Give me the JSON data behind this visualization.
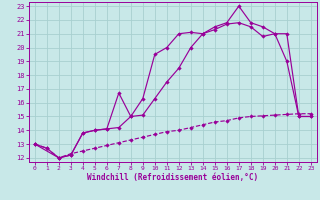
{
  "xlabel": "Windchill (Refroidissement éolien,°C)",
  "bg_color": "#c8e8e8",
  "grid_color": "#a8d0d0",
  "line_color": "#990099",
  "xlim": [
    -0.5,
    23.5
  ],
  "ylim": [
    11.7,
    23.3
  ],
  "xticks": [
    0,
    1,
    2,
    3,
    4,
    5,
    6,
    7,
    8,
    9,
    10,
    11,
    12,
    13,
    14,
    15,
    16,
    17,
    18,
    19,
    20,
    21,
    22,
    23
  ],
  "yticks": [
    12,
    13,
    14,
    15,
    16,
    17,
    18,
    19,
    20,
    21,
    22,
    23
  ],
  "curve1_x": [
    0,
    1,
    2,
    3,
    4,
    5,
    6,
    7,
    8,
    9,
    10,
    11,
    12,
    13,
    14,
    15,
    16,
    17,
    18,
    19,
    20,
    21,
    22,
    23
  ],
  "curve1_y": [
    13.0,
    12.7,
    12.0,
    12.2,
    13.8,
    14.0,
    14.1,
    16.7,
    15.0,
    16.3,
    19.5,
    20.0,
    21.0,
    21.1,
    21.0,
    21.5,
    21.8,
    23.0,
    21.8,
    21.5,
    21.0,
    19.0,
    15.0,
    15.0
  ],
  "curve2_x": [
    0,
    2,
    3,
    4,
    5,
    6,
    7,
    8,
    9,
    10,
    11,
    12,
    13,
    14,
    15,
    16,
    17,
    18,
    19,
    20,
    21,
    22,
    23
  ],
  "curve2_y": [
    13.0,
    12.0,
    12.2,
    13.8,
    14.0,
    14.1,
    14.2,
    15.0,
    15.1,
    16.3,
    17.5,
    18.5,
    20.0,
    21.0,
    21.3,
    21.7,
    21.8,
    21.5,
    20.8,
    21.0,
    21.0,
    15.0,
    15.0
  ],
  "curve3_x": [
    0,
    1,
    2,
    3,
    4,
    5,
    6,
    7,
    8,
    9,
    10,
    11,
    12,
    13,
    14,
    15,
    16,
    17,
    18,
    19,
    20,
    21,
    22,
    23
  ],
  "curve3_y": [
    13.0,
    12.7,
    12.0,
    12.3,
    12.5,
    12.7,
    12.9,
    13.1,
    13.3,
    13.5,
    13.7,
    13.9,
    14.0,
    14.2,
    14.4,
    14.6,
    14.7,
    14.9,
    15.0,
    15.05,
    15.1,
    15.15,
    15.2,
    15.2
  ],
  "markersize": 2.2
}
